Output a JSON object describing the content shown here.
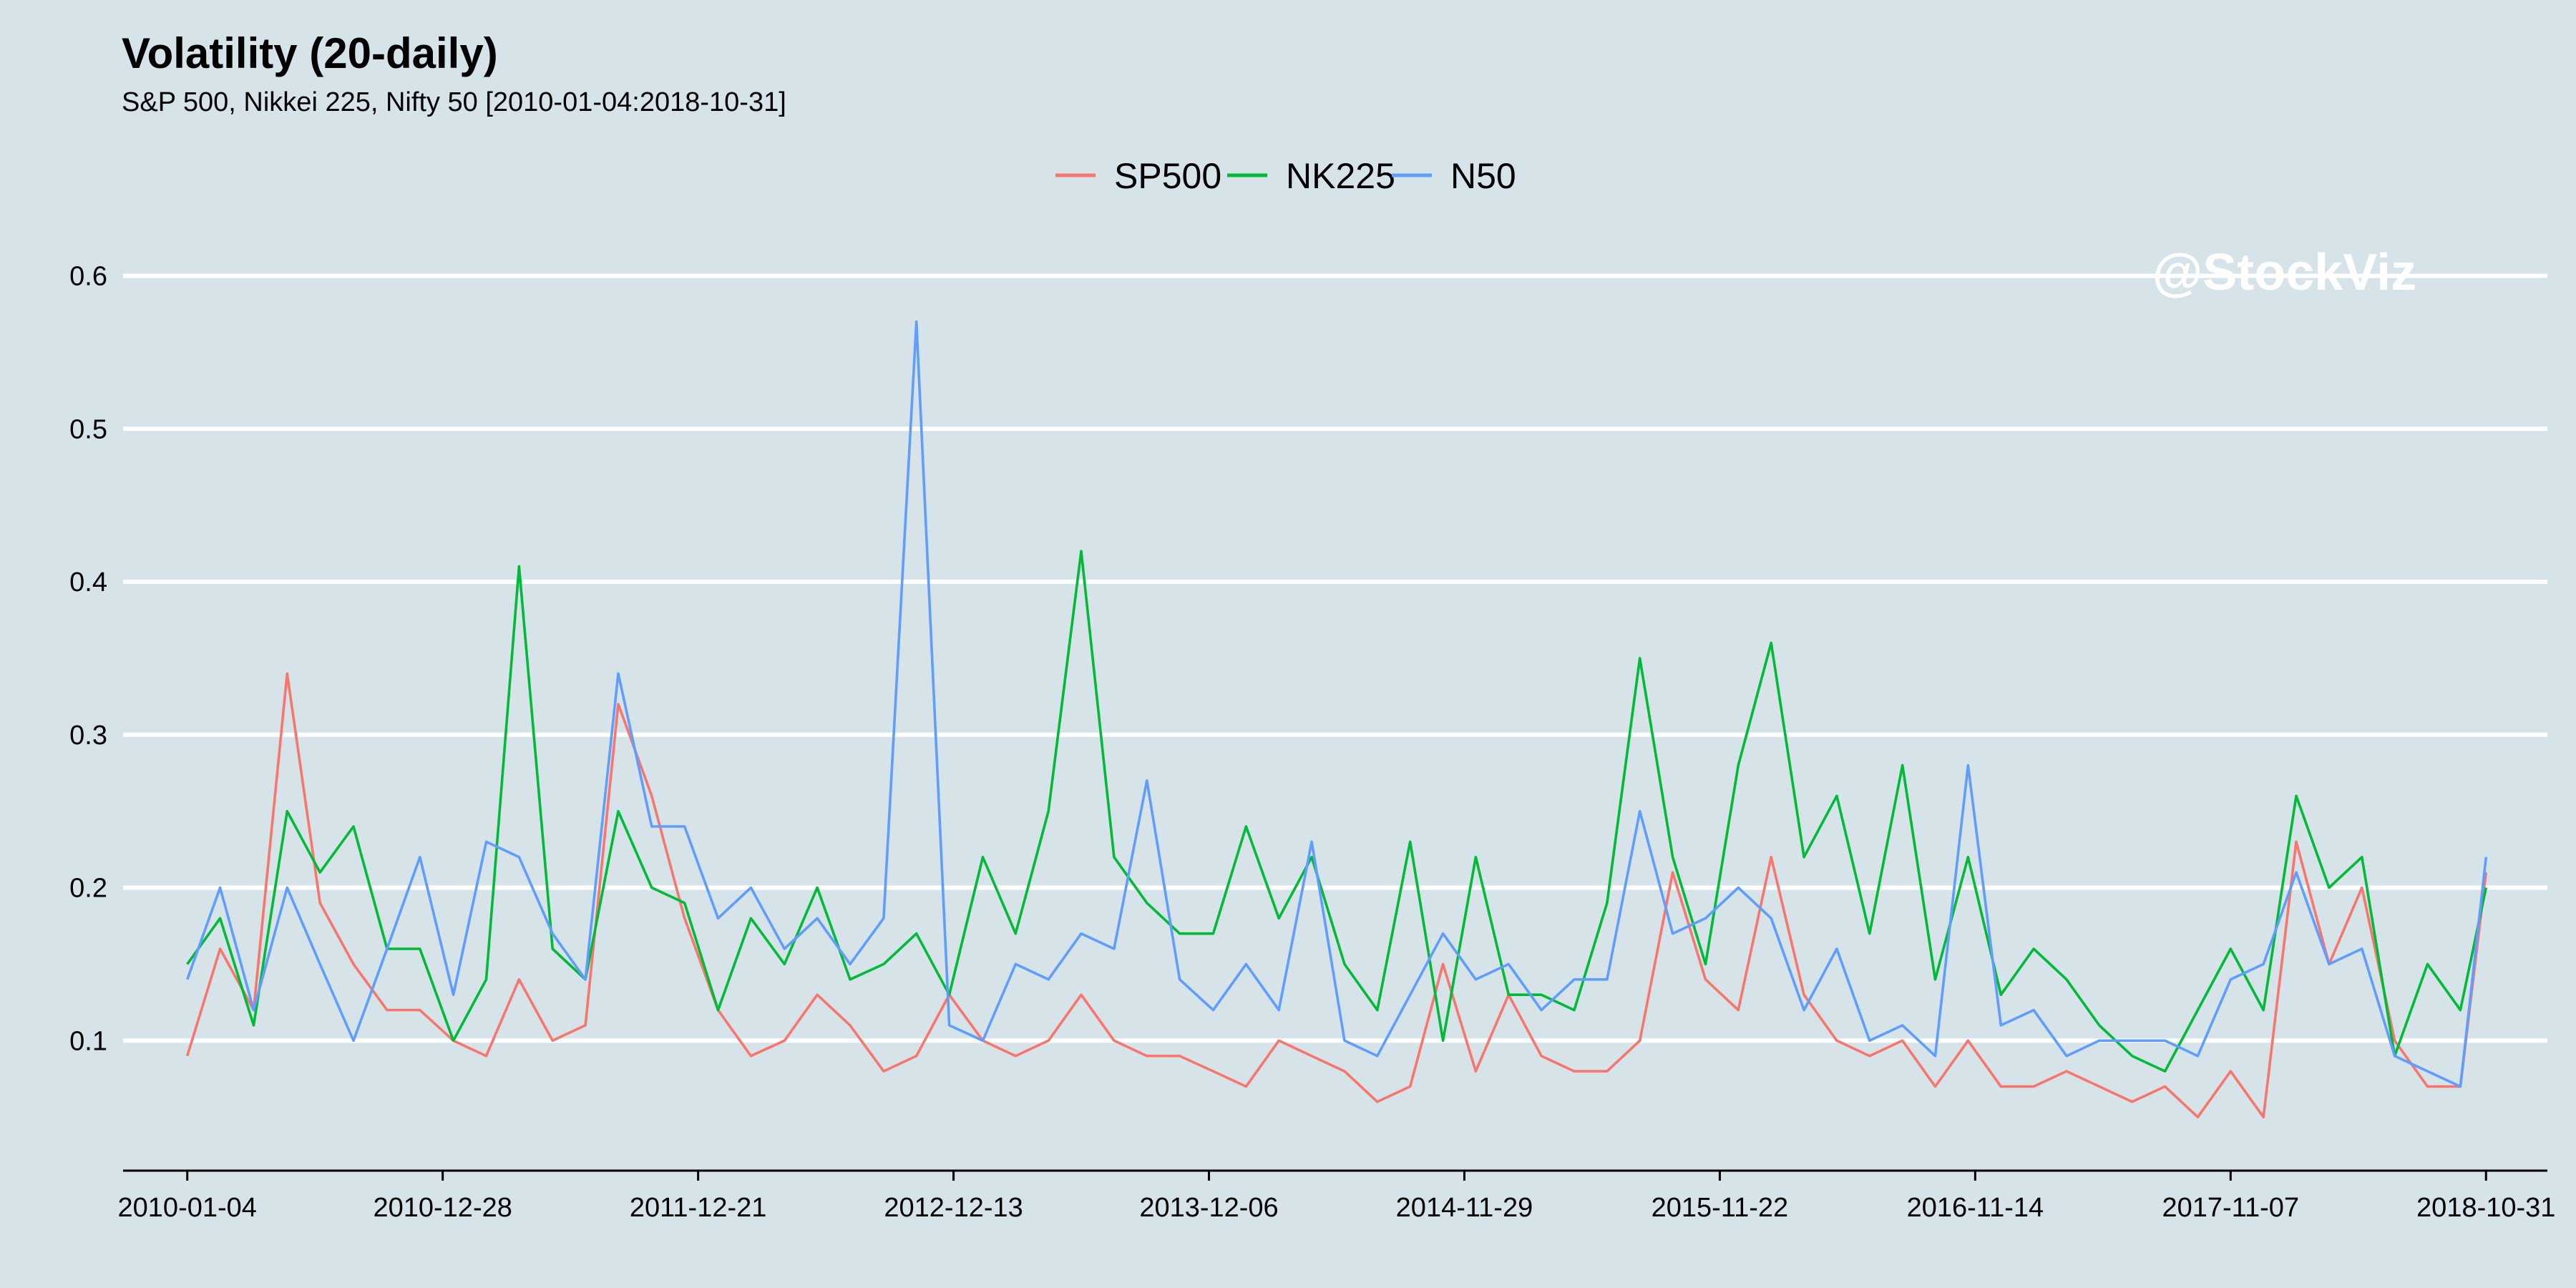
{
  "chart_data": {
    "type": "line",
    "title": "Volatility (20-daily)",
    "subtitle": "S&P 500, Nikkei 225, Nifty 50 [2010-01-04:2018-10-31]",
    "watermark": "@StockViz",
    "legend_position": "top",
    "grid": "horizontal",
    "ylim": [
      0.015,
      0.64
    ],
    "y_ticks": [
      0.1,
      0.2,
      0.3,
      0.4,
      0.5,
      0.6
    ],
    "y_tick_labels": [
      "0.1",
      "0.2",
      "0.3",
      "0.4",
      "0.5",
      "0.6"
    ],
    "x_range": [
      "2009-10-06",
      "2019-01-25"
    ],
    "x_ticks": [
      "2010-01-04",
      "2010-12-28",
      "2011-12-21",
      "2012-12-13",
      "2013-12-06",
      "2014-11-29",
      "2015-11-22",
      "2016-11-14",
      "2017-11-07",
      "2018-10-31"
    ],
    "x": [
      "2010-01-04",
      "2010-02-19",
      "2010-04-07",
      "2010-05-24",
      "2010-07-09",
      "2010-08-25",
      "2010-10-11",
      "2010-11-26",
      "2011-01-12",
      "2011-02-27",
      "2011-04-14",
      "2011-05-31",
      "2011-07-16",
      "2011-08-31",
      "2011-10-17",
      "2011-12-02",
      "2012-01-18",
      "2012-03-04",
      "2012-04-20",
      "2012-06-05",
      "2012-07-21",
      "2012-09-06",
      "2012-10-22",
      "2012-12-07",
      "2013-01-23",
      "2013-03-10",
      "2013-04-25",
      "2013-06-10",
      "2013-07-26",
      "2013-09-10",
      "2013-10-26",
      "2013-12-12",
      "2014-01-27",
      "2014-03-14",
      "2014-04-29",
      "2014-06-14",
      "2014-07-30",
      "2014-09-14",
      "2014-10-30",
      "2014-12-15",
      "2015-01-30",
      "2015-03-17",
      "2015-05-02",
      "2015-06-17",
      "2015-08-02",
      "2015-09-17",
      "2015-11-02",
      "2015-12-18",
      "2016-02-02",
      "2016-03-19",
      "2016-05-04",
      "2016-06-19",
      "2016-08-04",
      "2016-09-19",
      "2016-11-04",
      "2016-12-20",
      "2017-02-04",
      "2017-03-22",
      "2017-05-07",
      "2017-06-22",
      "2017-08-07",
      "2017-09-22",
      "2017-11-07",
      "2017-12-23",
      "2018-02-07",
      "2018-03-25",
      "2018-05-10",
      "2018-06-25",
      "2018-08-10",
      "2018-09-25",
      "2018-10-31"
    ],
    "series": [
      {
        "name": "SP500",
        "color": "#f8766d",
        "values": [
          0.09,
          0.16,
          0.12,
          0.34,
          0.19,
          0.15,
          0.12,
          0.12,
          0.1,
          0.09,
          0.14,
          0.1,
          0.11,
          0.32,
          0.26,
          0.18,
          0.12,
          0.09,
          0.1,
          0.13,
          0.11,
          0.08,
          0.09,
          0.13,
          0.1,
          0.09,
          0.1,
          0.13,
          0.1,
          0.09,
          0.09,
          0.08,
          0.07,
          0.1,
          0.09,
          0.08,
          0.06,
          0.07,
          0.15,
          0.08,
          0.13,
          0.09,
          0.08,
          0.08,
          0.1,
          0.21,
          0.14,
          0.12,
          0.22,
          0.13,
          0.1,
          0.09,
          0.1,
          0.07,
          0.1,
          0.07,
          0.07,
          0.08,
          0.07,
          0.06,
          0.07,
          0.05,
          0.08,
          0.05,
          0.23,
          0.15,
          0.2,
          0.1,
          0.07,
          0.07,
          0.21
        ]
      },
      {
        "name": "NK225",
        "color": "#00ba38",
        "values": [
          0.15,
          0.18,
          0.11,
          0.25,
          0.21,
          0.24,
          0.16,
          0.16,
          0.1,
          0.14,
          0.41,
          0.16,
          0.14,
          0.25,
          0.2,
          0.19,
          0.12,
          0.18,
          0.15,
          0.2,
          0.14,
          0.15,
          0.17,
          0.13,
          0.22,
          0.17,
          0.25,
          0.42,
          0.22,
          0.19,
          0.17,
          0.17,
          0.24,
          0.18,
          0.22,
          0.15,
          0.12,
          0.23,
          0.1,
          0.22,
          0.13,
          0.13,
          0.12,
          0.19,
          0.35,
          0.22,
          0.15,
          0.28,
          0.36,
          0.22,
          0.26,
          0.17,
          0.28,
          0.14,
          0.22,
          0.13,
          0.16,
          0.14,
          0.11,
          0.09,
          0.08,
          0.12,
          0.16,
          0.12,
          0.26,
          0.2,
          0.22,
          0.09,
          0.15,
          0.12,
          0.2
        ]
      },
      {
        "name": "N50",
        "color": "#619cff",
        "values": [
          0.14,
          0.2,
          0.12,
          0.2,
          0.15,
          0.1,
          0.16,
          0.22,
          0.13,
          0.23,
          0.22,
          0.17,
          0.14,
          0.34,
          0.24,
          0.24,
          0.18,
          0.2,
          0.16,
          0.18,
          0.15,
          0.18,
          0.57,
          0.11,
          0.1,
          0.15,
          0.14,
          0.17,
          0.16,
          0.27,
          0.14,
          0.12,
          0.15,
          0.12,
          0.23,
          0.1,
          0.09,
          0.13,
          0.17,
          0.14,
          0.15,
          0.12,
          0.14,
          0.14,
          0.25,
          0.17,
          0.18,
          0.2,
          0.18,
          0.12,
          0.16,
          0.1,
          0.11,
          0.09,
          0.28,
          0.11,
          0.12,
          0.09,
          0.1,
          0.1,
          0.1,
          0.09,
          0.14,
          0.15,
          0.21,
          0.15,
          0.16,
          0.09,
          0.08,
          0.07,
          0.22
        ]
      }
    ]
  }
}
